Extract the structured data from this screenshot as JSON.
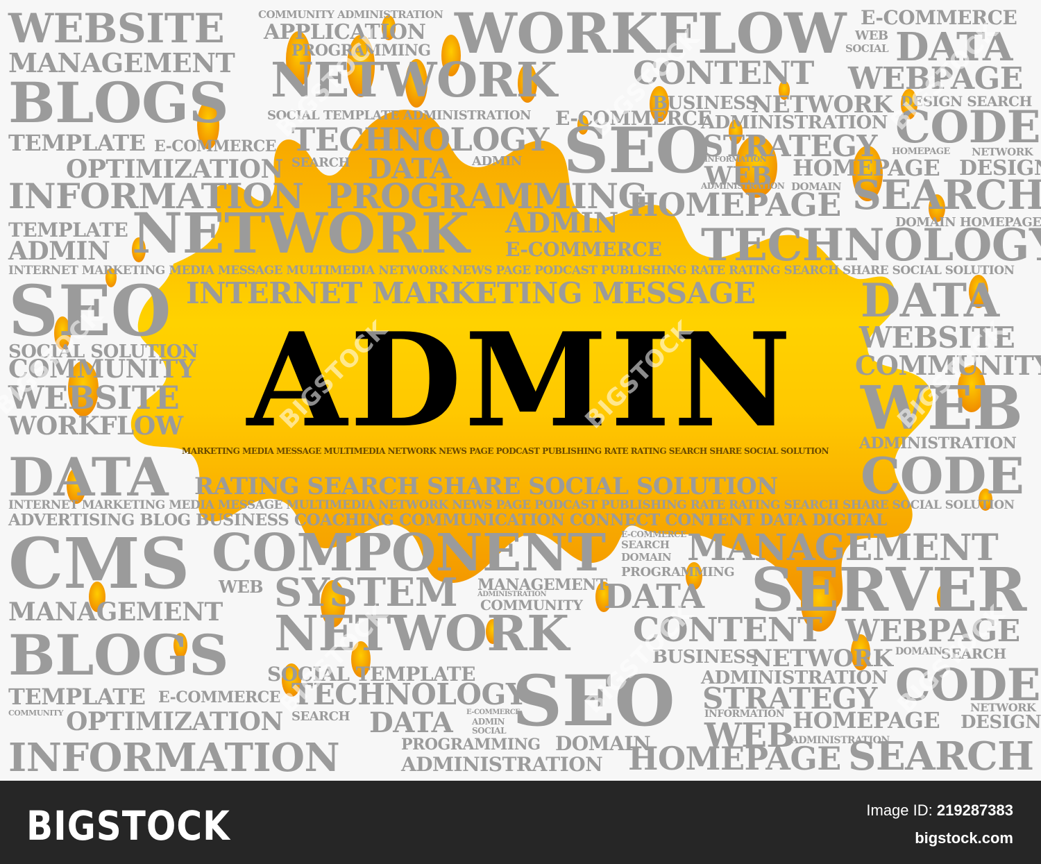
{
  "headline": "ADMIN",
  "background_words": [
    "WEBSITE",
    "COMMUNITY ADMINISTRATION",
    "APPLICATION",
    "PROGRAMMING",
    "WORKFLOW",
    "E-COMMERCE",
    "WEB",
    "SOCIAL",
    "DATA",
    "MANAGEMENT",
    "NETWORK",
    "CONTENT",
    "WEBPAGE",
    "BLOGS",
    "BUSINESS",
    "NETWORK",
    "DESIGN SEARCH",
    "SOCIAL TEMPLATE ADMINISTRATION",
    "E-COMMERCE",
    "ADMINISTRATION",
    "CODE",
    "TECHNOLOGY",
    "SEO",
    "STRATEGY",
    "TEMPLATE",
    "E-COMMERCE",
    "HOMEPAGE",
    "NETWORK",
    "DESIGN",
    "OPTIMIZATION",
    "SEARCH",
    "DATA",
    "ADMIN",
    "INFORMATION",
    "WEB",
    "HOMEPAGE",
    "INFORMATION",
    "PROGRAMMING",
    "ADMINISTRATION",
    "DOMAIN",
    "SEARCH",
    "NETWORK",
    "ADMIN",
    "HOMEPAGE",
    "DOMAIN HOMEPAGE",
    "TEMPLATE",
    "ADMIN",
    "E-COMMERCE",
    "TECHNOLOGY",
    "INTERNET MARKETING MEDIA MESSAGE MULTIMEDIA NETWORK NEWS PAGE PODCAST PUBLISHING RATE RATING SEARCH SHARE SOCIAL SOLUTION",
    "SEO",
    "INTERNET MARKETING MESSAGE",
    "DATA",
    "SOCIAL SOLUTION",
    "WEBSITE",
    "COMMUNITY",
    "COMMUNITY",
    "WEBSITE",
    "WEB",
    "WORKFLOW",
    "ADMINISTRATION",
    "MARKETING MEDIA MESSAGE MULTIMEDIA NETWORK NEWS PAGE PODCAST PUBLISHING RATE RATING SEARCH SHARE SOCIAL SOLUTION",
    "DATA",
    "RATING SEARCH SHARE SOCIAL SOLUTION",
    "CODE",
    "INTERNET MARKETING MEDIA MESSAGE MULTIMEDIA NETWORK NEWS PAGE PODCAST PUBLISHING RATE RATING SEARCH SHARE SOCIAL SOLUTION",
    "ADVERTISING BLOG BUSINESS COACHING COMMUNICATION CONNECT CONTENT DATA DIGITAL",
    "CMS",
    "COMPONENT",
    "MANAGEMENT",
    "E-COMMERCE",
    "SEARCH",
    "DOMAIN",
    "PROGRAMMING",
    "WEB",
    "SYSTEM",
    "MANAGEMENT",
    "ADMINISTRATION",
    "COMMUNITY",
    "DATA",
    "SERVER",
    "MANAGEMENT",
    "NETWORK",
    "CONTENT",
    "WEBPAGE",
    "BLOGS",
    "BUSINESS",
    "NETWORK",
    "DOMAIN",
    "SEARCH",
    "SOCIAL TEMPLATE",
    "ADMINISTRATION",
    "TEMPLATE",
    "E-COMMERCE",
    "TECHNOLOGY",
    "SEO",
    "STRATEGY",
    "CODE",
    "COMMUNITY",
    "OPTIMIZATION",
    "SEARCH",
    "DATA",
    "E-COMMERCE",
    "ADMIN",
    "SOCIAL",
    "INFORMATION",
    "HOMEPAGE",
    "NETWORK",
    "DESIGN",
    "INFORMATION",
    "PROGRAMMING",
    "DOMAIN",
    "WEB",
    "HOMEPAGE",
    "SEARCH",
    "ADMINISTRATION",
    "ADMINISTRATION"
  ],
  "watermarks": [
    "BIGSTOCK",
    "BIGSTOCK",
    "BIGSTOCK",
    "BIGSTOCK",
    "BIGSTOCK",
    "BIGSTOCK",
    "BIGSTOCK",
    "BIGSTOCK",
    "BIGSTOCK",
    "BIGSTOCK"
  ],
  "footer": {
    "brand": "BIGSTOCK",
    "image_id_label": "Image ID:",
    "image_id": "219287383",
    "site": "bigstock.com"
  },
  "colors": {
    "word": "#9b9b9b",
    "splash_orange": "#f39200",
    "splash_yellow": "#ffd400",
    "footer_bg": "#262626"
  }
}
